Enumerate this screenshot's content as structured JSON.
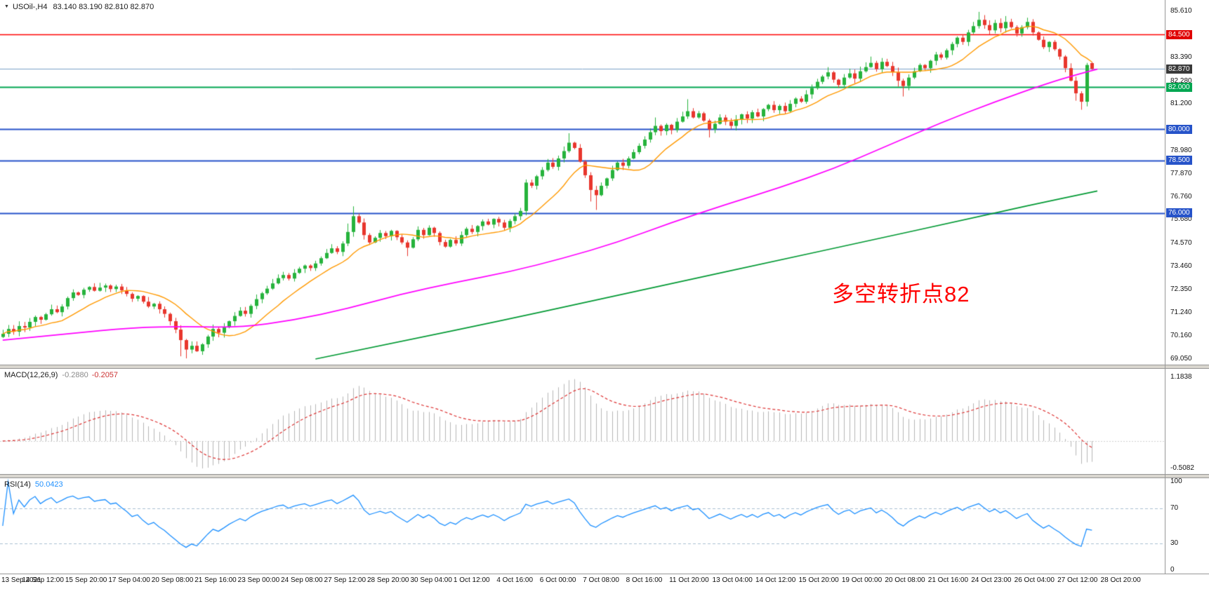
{
  "window": {
    "menu_icon": "▼",
    "symbol_period": "USOil-,H4",
    "ohlc_display": "83.140 83.190 82.810 82.870"
  },
  "annotation": {
    "text": "多空转折点82",
    "color": "#ff0000"
  },
  "indicators": {
    "macd": {
      "label": "MACD(12,26,9)",
      "value_main": "-0.2880",
      "value_signal": "-0.2057"
    },
    "rsi": {
      "label": "RSI(14)",
      "value": "50.0423"
    }
  },
  "chart_data": {
    "type": "candlestick",
    "symbol": "USOil-",
    "timeframe": "H4",
    "slots": 216,
    "label_every": 8,
    "price_range": {
      "max": 85.61,
      "min": 69.05
    },
    "first_open": 70.1,
    "closes": [
      70.25,
      70.48,
      70.35,
      70.62,
      70.55,
      70.82,
      71.05,
      70.92,
      71.18,
      71.42,
      71.28,
      71.55,
      71.95,
      72.22,
      72.1,
      72.35,
      72.48,
      72.3,
      72.45,
      72.55,
      72.38,
      72.5,
      72.32,
      72.15,
      71.92,
      72.05,
      71.78,
      71.55,
      71.68,
      71.42,
      71.2,
      70.85,
      70.45,
      69.95,
      69.5,
      69.68,
      69.42,
      69.75,
      70.12,
      70.48,
      70.3,
      70.55,
      70.85,
      71.1,
      71.35,
      71.2,
      71.58,
      71.9,
      72.18,
      72.4,
      72.65,
      72.9,
      73.05,
      72.88,
      73.15,
      73.35,
      73.5,
      73.38,
      73.6,
      73.85,
      74.1,
      74.32,
      74.15,
      74.55,
      75.1,
      75.85,
      75.55,
      74.95,
      74.6,
      74.82,
      75.05,
      74.9,
      75.15,
      74.85,
      74.6,
      74.35,
      74.75,
      75.2,
      74.95,
      75.3,
      75.05,
      74.62,
      74.4,
      74.72,
      74.55,
      74.95,
      75.25,
      75.1,
      75.38,
      75.6,
      75.45,
      75.72,
      75.55,
      75.3,
      75.62,
      75.85,
      76.1,
      77.45,
      77.3,
      77.75,
      78.05,
      78.4,
      78.2,
      78.6,
      78.95,
      79.35,
      79.1,
      78.45,
      77.8,
      77.1,
      76.85,
      77.3,
      77.65,
      78.05,
      78.4,
      78.25,
      78.6,
      78.9,
      79.2,
      79.5,
      79.85,
      80.15,
      79.9,
      80.2,
      79.95,
      80.35,
      80.6,
      80.85,
      80.55,
      80.75,
      80.4,
      79.98,
      80.25,
      80.55,
      80.35,
      80.15,
      80.45,
      80.7,
      80.5,
      80.8,
      80.6,
      80.95,
      81.15,
      80.9,
      81.1,
      80.85,
      81.2,
      81.45,
      81.3,
      81.65,
      81.95,
      82.25,
      82.5,
      82.7,
      82.35,
      82.1,
      82.45,
      82.65,
      82.4,
      82.75,
      82.95,
      83.15,
      82.85,
      83.2,
      83.0,
      82.7,
      82.3,
      82.05,
      82.45,
      82.75,
      83.05,
      82.9,
      83.25,
      83.55,
      83.4,
      83.75,
      84.05,
      84.35,
      84.15,
      84.6,
      84.9,
      85.2,
      84.95,
      84.7,
      85.05,
      84.8,
      85.1,
      84.85,
      84.55,
      84.85,
      85.1,
      84.6,
      84.25,
      83.9,
      84.15,
      83.8,
      83.45,
      82.9,
      82.3,
      81.7,
      81.3,
      83.05,
      82.87
    ],
    "last_bar": {
      "open": 83.14,
      "high": 83.19,
      "low": 82.81,
      "close": 82.87
    },
    "wick_overrides": {
      "33": {
        "l": 69.18
      },
      "34": {
        "l": 69.08
      },
      "64": {
        "h": 75.5
      },
      "65": {
        "h": 76.32
      },
      "75": {
        "l": 73.95
      },
      "97": {
        "h": 77.6
      },
      "105": {
        "h": 79.8
      },
      "109": {
        "l": 76.55
      },
      "110": {
        "l": 76.15
      },
      "121": {
        "h": 80.55
      },
      "127": {
        "h": 81.42
      },
      "131": {
        "l": 79.6
      },
      "153": {
        "h": 82.95
      },
      "161": {
        "h": 83.45
      },
      "166": {
        "l": 82.02
      },
      "167": {
        "l": 81.55
      },
      "181": {
        "h": 85.58
      },
      "186": {
        "h": 85.38
      },
      "190": {
        "h": 85.3
      },
      "199": {
        "l": 81.35
      },
      "200": {
        "l": 80.92
      },
      "201": {
        "h": 83.15
      }
    },
    "colors": {
      "up": "#26b33c",
      "down": "#e8362d",
      "ma_fast": "#ff9900",
      "ma_mid": "#ff00ff",
      "ma_slow": "#009933",
      "macd_hist": "#b6b6b6",
      "macd_signal": "#dd3333",
      "rsi_line": "#1e90ff",
      "price_line": "#7ba0c8"
    },
    "ma_fast_period": 12,
    "ma_mid_points": [
      [
        0,
        69.95
      ],
      [
        12,
        70.25
      ],
      [
        24,
        70.55
      ],
      [
        34,
        70.6
      ],
      [
        44,
        70.55
      ],
      [
        54,
        70.9
      ],
      [
        64,
        71.45
      ],
      [
        74,
        72.15
      ],
      [
        84,
        72.7
      ],
      [
        94,
        73.2
      ],
      [
        104,
        73.85
      ],
      [
        114,
        74.6
      ],
      [
        124,
        75.55
      ],
      [
        134,
        76.4
      ],
      [
        144,
        77.2
      ],
      [
        154,
        78.1
      ],
      [
        164,
        79.2
      ],
      [
        174,
        80.3
      ],
      [
        184,
        81.3
      ],
      [
        194,
        82.2
      ],
      [
        200,
        82.65
      ],
      [
        203,
        82.85
      ]
    ],
    "ma_slow_points": [
      [
        58,
        69.05
      ],
      [
        75,
        69.95
      ],
      [
        92,
        70.85
      ],
      [
        109,
        71.8
      ],
      [
        126,
        72.75
      ],
      [
        143,
        73.7
      ],
      [
        160,
        74.65
      ],
      [
        177,
        75.6
      ],
      [
        190,
        76.35
      ],
      [
        203,
        77.05
      ]
    ],
    "hlines": [
      {
        "price": 84.5,
        "color": "#ff0000",
        "width": 1.4
      },
      {
        "price": 82.87,
        "color": "#7ba0c8",
        "width": 1
      },
      {
        "price": 82.0,
        "color": "#00a651",
        "width": 2
      },
      {
        "price": 80.0,
        "color": "#2653c9",
        "width": 2
      },
      {
        "price": 78.5,
        "color": "#2653c9",
        "width": 2
      },
      {
        "price": 76.0,
        "color": "#2653c9",
        "width": 2
      }
    ],
    "price_ticks": [
      {
        "t": "85.610",
        "p": 85.61
      },
      {
        "t": "83.390",
        "p": 83.39
      },
      {
        "t": "82.280",
        "p": 82.28
      },
      {
        "t": "81.200",
        "p": 81.2
      },
      {
        "t": "78.980",
        "p": 78.98
      },
      {
        "t": "77.870",
        "p": 77.87
      },
      {
        "t": "76.760",
        "p": 76.76
      },
      {
        "t": "75.680",
        "p": 75.68
      },
      {
        "t": "74.570",
        "p": 74.57
      },
      {
        "t": "73.460",
        "p": 73.46
      },
      {
        "t": "72.350",
        "p": 72.35
      },
      {
        "t": "71.240",
        "p": 71.24
      },
      {
        "t": "70.160",
        "p": 70.16
      },
      {
        "t": "69.050",
        "p": 69.05
      }
    ],
    "badges": [
      {
        "t": "84.500",
        "p": 84.5,
        "bg": "#e00000"
      },
      {
        "t": "82.870",
        "p": 82.87,
        "bg": "#3a3a3a"
      },
      {
        "t": "82.000",
        "p": 82.0,
        "bg": "#00a651"
      },
      {
        "t": "80.000",
        "p": 80.0,
        "bg": "#2653c9"
      },
      {
        "t": "78.500",
        "p": 78.5,
        "bg": "#2653c9"
      },
      {
        "t": "76.000",
        "p": 76.0,
        "bg": "#2653c9"
      }
    ],
    "macd_scale": {
      "max": 1.1838,
      "min": -0.5082,
      "ticks": [
        {
          "t": "1.1838",
          "v": 1.1838
        },
        {
          "t": "-0.5082",
          "v": -0.5082
        }
      ]
    },
    "rsi_scale": {
      "levels": [
        70,
        30
      ],
      "ticks": [
        {
          "t": "100",
          "v": 100
        },
        {
          "t": "70",
          "v": 70
        },
        {
          "t": "30",
          "v": 30
        },
        {
          "t": "0",
          "v": 0
        }
      ]
    },
    "time_labels": [
      "13 Sep 2021",
      "14 Sep 12:00",
      "15 Sep 20:00",
      "17 Sep 04:00",
      "20 Sep 08:00",
      "21 Sep 16:00",
      "23 Sep 00:00",
      "24 Sep 08:00",
      "27 Sep 12:00",
      "28 Sep 20:00",
      "30 Sep 04:00",
      "1 Oct 12:00",
      "4 Oct 16:00",
      "6 Oct 00:00",
      "7 Oct 08:00",
      "8 Oct 16:00",
      "11 Oct 20:00",
      "13 Oct 04:00",
      "14 Oct 12:00",
      "15 Oct 20:00",
      "19 Oct 00:00",
      "20 Oct 08:00",
      "21 Oct 16:00",
      "24 Oct 23:00",
      "26 Oct 04:00",
      "27 Oct 12:00",
      "28 Oct 20:00"
    ]
  }
}
